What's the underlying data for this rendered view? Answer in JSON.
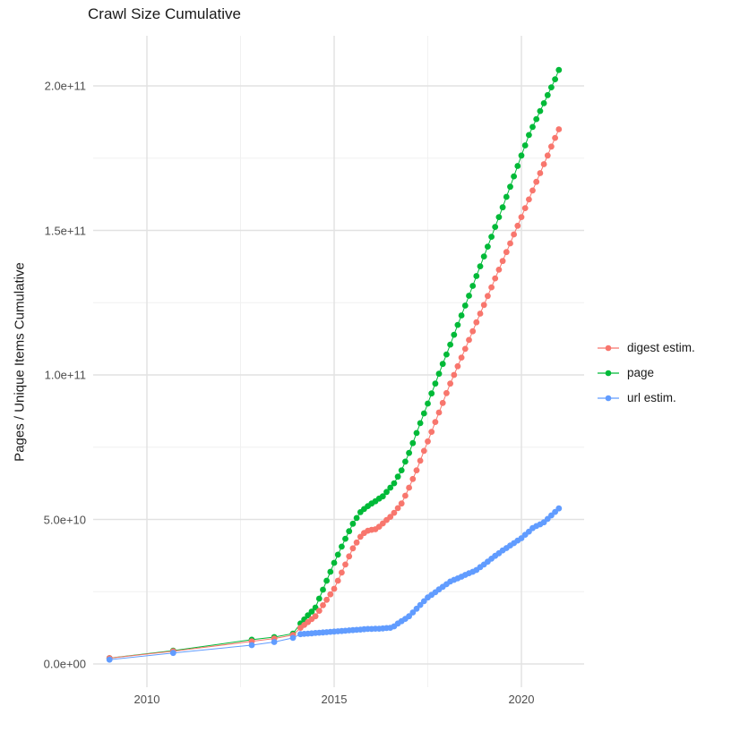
{
  "title": "Crawl Size Cumulative",
  "y_axis_label": "Pages / Unique Items Cumulative",
  "y_ticks": [
    {
      "label": "0.0e+00",
      "value": 0
    },
    {
      "label": "5.0e+10",
      "value": 50
    },
    {
      "label": "1.0e+11",
      "value": 100
    },
    {
      "label": "1.5e+11",
      "value": 150
    },
    {
      "label": "2.0e+11",
      "value": 200
    }
  ],
  "x_ticks": [
    {
      "label": "2010",
      "value": 2010
    },
    {
      "label": "2015",
      "value": 2015
    },
    {
      "label": "2020",
      "value": 2020
    }
  ],
  "legend": {
    "items": [
      {
        "label": "digest estim.",
        "color": "#F8766D"
      },
      {
        "label": "page",
        "color": "#00BA38"
      },
      {
        "label": "url estim.",
        "color": "#619CFF"
      }
    ]
  },
  "chart_data": {
    "type": "scatter",
    "title": "Crawl Size Cumulative",
    "xlabel": "",
    "ylabel": "Pages / Unique Items Cumulative",
    "value_unit": "1e9 pages (y values below are billions)",
    "x_unit": "decimal year",
    "xlim": [
      2008.5,
      2021.7
    ],
    "ylim_e9": [
      -8,
      218
    ],
    "grid": "major and minor, light grey on white",
    "legend_position": "right",
    "x": [
      2009.0,
      2010.7,
      2012.8,
      2013.4,
      2013.9,
      2014.1,
      2014.2,
      2014.3,
      2014.4,
      2014.5,
      2014.6,
      2014.7,
      2014.8,
      2014.9,
      2015.0,
      2015.1,
      2015.2,
      2015.3,
      2015.4,
      2015.5,
      2015.6,
      2015.7,
      2015.8,
      2015.9,
      2016.0,
      2016.1,
      2016.2,
      2016.3,
      2016.4,
      2016.5,
      2016.6,
      2016.7,
      2016.8,
      2016.9,
      2017.0,
      2017.1,
      2017.2,
      2017.3,
      2017.4,
      2017.5,
      2017.6,
      2017.7,
      2017.8,
      2017.9,
      2018.0,
      2018.1,
      2018.2,
      2018.3,
      2018.4,
      2018.5,
      2018.6,
      2018.7,
      2018.8,
      2018.9,
      2019.0,
      2019.1,
      2019.2,
      2019.3,
      2019.4,
      2019.5,
      2019.6,
      2019.7,
      2019.8,
      2019.9,
      2020.0,
      2020.1,
      2020.2,
      2020.3,
      2020.4,
      2020.5,
      2020.6,
      2020.7,
      2020.8,
      2020.9,
      2021.0
    ],
    "series": [
      {
        "name": "digest estim.",
        "color": "#F8766D",
        "values": [
          2.0,
          4.4,
          7.8,
          8.8,
          10.0,
          12.5,
          13.5,
          14.5,
          15.5,
          16.5,
          18.4,
          20.3,
          22.2,
          24.1,
          26.0,
          28.8,
          31.6,
          34.4,
          37.2,
          40.0,
          42.0,
          44.0,
          45.3,
          46.1,
          46.4,
          46.6,
          47.5,
          48.6,
          49.8,
          50.9,
          52.3,
          53.9,
          55.5,
          58.2,
          61.0,
          64.0,
          67.0,
          70.3,
          73.7,
          77.0,
          80.3,
          83.7,
          87.0,
          90.3,
          93.7,
          97.0,
          100.0,
          103.0,
          106.0,
          109.0,
          112.1,
          115.1,
          118.2,
          121.2,
          124.2,
          127.3,
          130.3,
          133.4,
          136.4,
          139.4,
          142.5,
          145.5,
          148.6,
          151.6,
          154.6,
          157.7,
          160.7,
          163.8,
          166.8,
          169.8,
          172.9,
          175.9,
          179.0,
          182.0,
          185.0
        ]
      },
      {
        "name": "page",
        "color": "#00BA38",
        "values": [
          2.0,
          4.6,
          8.4,
          9.3,
          10.5,
          14.0,
          15.4,
          16.8,
          18.1,
          19.5,
          22.6,
          25.7,
          28.8,
          31.9,
          35.0,
          37.8,
          40.6,
          43.3,
          45.9,
          48.5,
          50.5,
          52.5,
          53.6,
          54.6,
          55.5,
          56.3,
          57.2,
          58.0,
          59.5,
          61.0,
          62.5,
          64.8,
          67.0,
          70.0,
          73.0,
          76.4,
          79.9,
          83.3,
          86.7,
          90.1,
          93.6,
          97.0,
          100.4,
          103.8,
          107.1,
          110.5,
          113.9,
          117.3,
          120.6,
          124.0,
          127.4,
          130.8,
          134.2,
          137.6,
          141.0,
          144.4,
          147.8,
          151.2,
          154.6,
          158.0,
          161.6,
          165.1,
          168.7,
          172.3,
          175.9,
          179.4,
          183.0,
          185.8,
          188.5,
          191.3,
          194.0,
          196.8,
          199.5,
          202.3,
          205.5
        ]
      },
      {
        "name": "url estim.",
        "color": "#619CFF",
        "values": [
          1.5,
          3.8,
          6.5,
          7.6,
          9.0,
          10.3,
          10.4,
          10.5,
          10.6,
          10.7,
          10.8,
          10.9,
          11.0,
          11.1,
          11.2,
          11.3,
          11.4,
          11.5,
          11.6,
          11.7,
          11.8,
          11.9,
          12.0,
          12.1,
          12.1,
          12.2,
          12.2,
          12.3,
          12.4,
          12.5,
          13.0,
          14.0,
          14.8,
          15.6,
          16.5,
          17.8,
          19.1,
          20.4,
          21.7,
          23.0,
          23.9,
          24.8,
          25.8,
          26.7,
          27.6,
          28.5,
          29.1,
          29.6,
          30.2,
          30.8,
          31.4,
          31.9,
          32.5,
          33.5,
          34.4,
          35.4,
          36.4,
          37.4,
          38.3,
          39.3,
          40.1,
          41.0,
          41.8,
          42.7,
          43.5,
          44.7,
          45.8,
          47.0,
          47.7,
          48.3,
          49.0,
          50.2,
          51.4,
          52.6,
          53.8
        ]
      }
    ]
  }
}
